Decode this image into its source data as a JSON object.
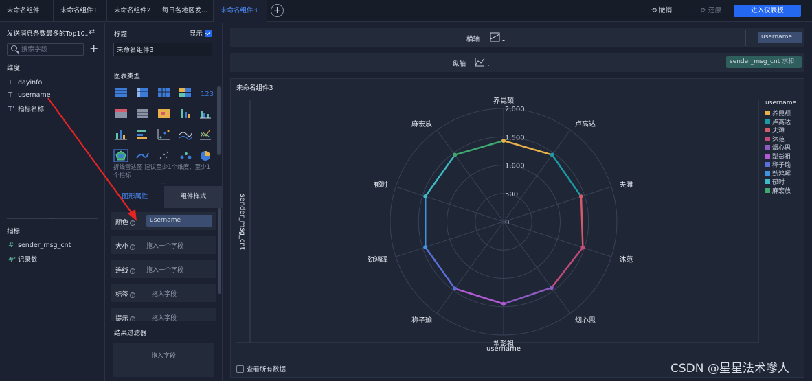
{
  "tabs": [
    {
      "label": "未命名组件",
      "active": false
    },
    {
      "label": "未命名组件1",
      "active": false
    },
    {
      "label": "未命名组件2",
      "active": false
    },
    {
      "label": "每日各地区发...",
      "active": false
    },
    {
      "label": "未命名组件3",
      "active": true
    }
  ],
  "toolbar": {
    "undo_label": "撤销",
    "redo_label": "还原",
    "enter_label": "进入仪表板"
  },
  "fields_panel": {
    "dataset_title": "发送消息条数最多的Top10...",
    "search_placeholder": "搜索字段",
    "dimensions_label": "维度",
    "dimensions": [
      "dayinfo",
      "username",
      "指标名称"
    ],
    "measures_label": "指标",
    "measures": [
      "sender_msg_cnt",
      "记录数"
    ]
  },
  "config_panel": {
    "title_label": "标题",
    "show_label": "显示",
    "title_value": "未命名组件3",
    "chart_types_label": "图表类型",
    "chart_type_hint": "折线雷达图 建议至少1个维度，至少1个指标",
    "tab_graph": "图形属性",
    "tab_style": "组件样式",
    "encodings": [
      {
        "key": "颜色",
        "value": "username",
        "filled": true
      },
      {
        "key": "大小",
        "value": "拖入一个字段",
        "filled": false
      },
      {
        "key": "连线",
        "value": "拖入一个字段",
        "filled": false
      },
      {
        "key": "标签",
        "value": "拖入字段",
        "filled": false
      },
      {
        "key": "提示",
        "value": "拖入字段",
        "filled": false
      }
    ],
    "filter_label": "结果过滤器",
    "filter_placeholder": "拖入字段"
  },
  "axes": {
    "x_label": "横轴",
    "x_field": "username",
    "y_label": "纵轴",
    "y_field": "sender_msg_cnt",
    "y_agg": "求和"
  },
  "colors": {
    "accent": "#2468f2",
    "x_pill": "#3b4e72",
    "y_pill": "#2f5f5c"
  },
  "chart": {
    "title": "未命名组件3",
    "see_all_label": "查看所有数据",
    "watermark": "CSDN @星星法术嗲人"
  },
  "chart_data": {
    "type": "radar",
    "title": "未命名组件3",
    "xlabel": "username",
    "ylabel": "sender_msg_cnt",
    "radial_ticks": [
      "0",
      "500",
      "1,000",
      "1,500",
      "2,000"
    ],
    "rmax": 2000,
    "legend_title": "username",
    "legend_position": "right",
    "categories": [
      "养昆颉",
      "卢高达",
      "夫濉",
      "沐范",
      "烟心思",
      "犁彭祖",
      "称子瑜",
      "劲鸿晖",
      "郁时",
      "麻宏放"
    ],
    "values": [
      1430,
      1460,
      1440,
      1470,
      1440,
      1450,
      1460,
      1450,
      1450,
      1460
    ],
    "series_colors": [
      "#e8b04a",
      "#1c9aa6",
      "#d45a6a",
      "#c24b7a",
      "#8c5cc2",
      "#b15ad4",
      "#5b6fd8",
      "#3f94dd",
      "#40b8c6",
      "#3fa86f"
    ]
  }
}
